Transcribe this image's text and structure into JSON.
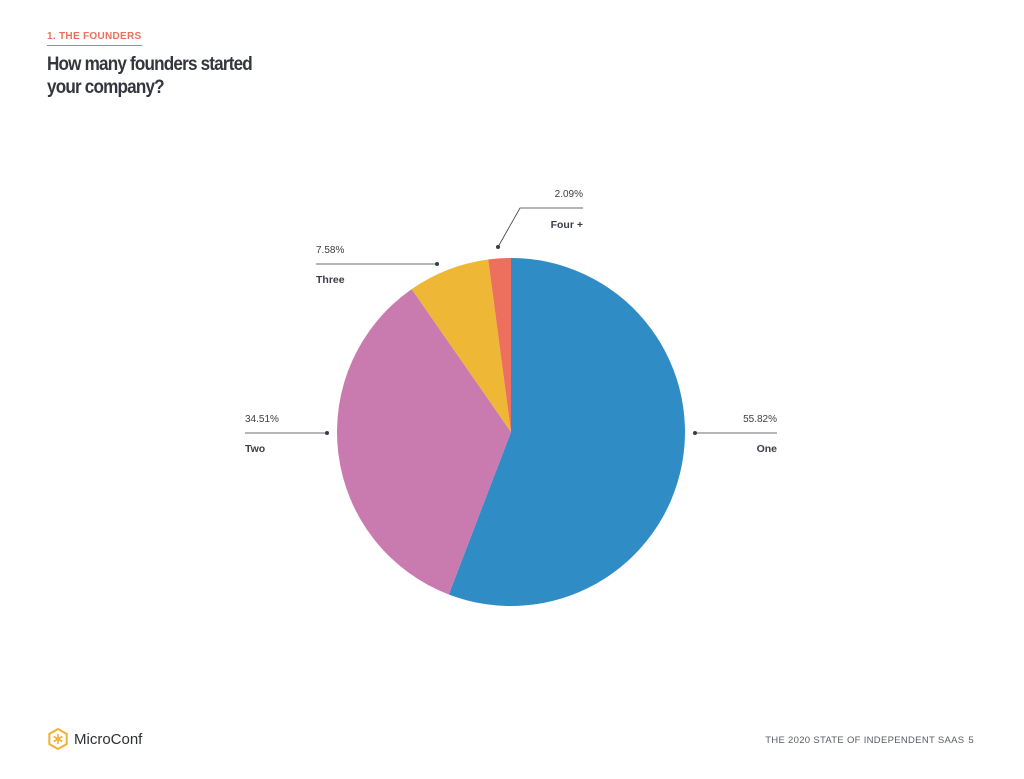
{
  "header": {
    "section_label": "1. THE FOUNDERS",
    "title": "How many founders started your company?"
  },
  "chart_data": {
    "type": "pie",
    "start_angle_deg": 0,
    "direction": "clockwise",
    "slices": [
      {
        "label": "One",
        "value": 55.82,
        "display": "55.82%",
        "color": "#2f8cc5"
      },
      {
        "label": "Two",
        "value": 34.51,
        "display": "34.51%",
        "color": "#c97aae"
      },
      {
        "label": "Three",
        "value": 7.58,
        "display": "7.58%",
        "color": "#eeb735"
      },
      {
        "label": "Four +",
        "value": 2.09,
        "display": "2.09%",
        "color": "#ed6f5d"
      }
    ]
  },
  "footer": {
    "brand": "MicroConf",
    "report": "THE 2020 STATE OF INDEPENDENT SAAS",
    "page": "5",
    "logo_color": "#f2b134"
  }
}
